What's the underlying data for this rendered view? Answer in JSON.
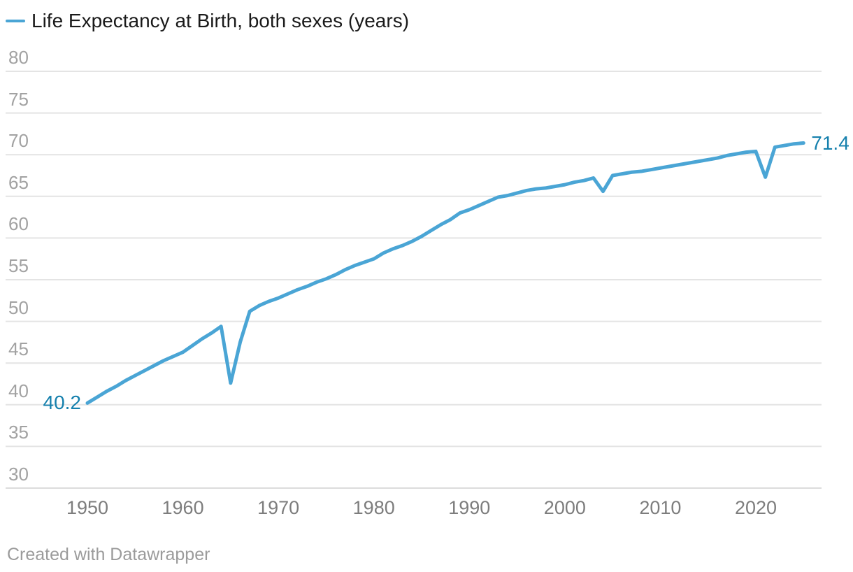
{
  "legend": {
    "label": "Life Expectancy at Birth, both sexes (years)"
  },
  "labels": {
    "start_value": "40.2",
    "end_value": "71.4"
  },
  "footer": {
    "text": "Created with Datawrapper"
  },
  "colors": {
    "line": "#4aa5d5",
    "value_label": "#1580ad",
    "legend_text": "#1a1a1a",
    "y_tick": "#a2a2a2",
    "x_tick": "#7d7d7d",
    "grid": "#e4e4e4",
    "grid_baseline": "#dcdcdc",
    "footer_text": "#9b9b9b",
    "background": "#ffffff"
  },
  "chart_data": {
    "type": "line",
    "title": "",
    "xlabel": "",
    "ylabel": "",
    "legend_position": "top-left",
    "grid": "horizontal",
    "ylim": [
      30,
      80
    ],
    "yticks": [
      80,
      75,
      70,
      65,
      60,
      55,
      50,
      45,
      40,
      35,
      30
    ],
    "xticks": [
      1950,
      1960,
      1970,
      1980,
      1990,
      2000,
      2010,
      2020
    ],
    "x_range": [
      1950,
      2025
    ],
    "series": [
      {
        "name": "Life Expectancy at Birth, both sexes (years)",
        "x": [
          1950,
          1951,
          1952,
          1953,
          1954,
          1955,
          1956,
          1957,
          1958,
          1959,
          1960,
          1961,
          1962,
          1963,
          1964,
          1965,
          1966,
          1967,
          1968,
          1969,
          1970,
          1971,
          1972,
          1973,
          1974,
          1975,
          1976,
          1977,
          1978,
          1979,
          1980,
          1981,
          1982,
          1983,
          1984,
          1985,
          1986,
          1987,
          1988,
          1989,
          1990,
          1991,
          1992,
          1993,
          1994,
          1995,
          1996,
          1997,
          1998,
          1999,
          2000,
          2001,
          2002,
          2003,
          2004,
          2005,
          2006,
          2007,
          2008,
          2009,
          2010,
          2011,
          2012,
          2013,
          2014,
          2015,
          2016,
          2017,
          2018,
          2019,
          2020,
          2021,
          2022,
          2023,
          2024,
          2025
        ],
        "values": [
          40.2,
          40.9,
          41.6,
          42.2,
          42.9,
          43.5,
          44.1,
          44.7,
          45.3,
          45.8,
          46.3,
          47.1,
          47.9,
          48.6,
          49.4,
          42.6,
          47.5,
          51.2,
          51.9,
          52.4,
          52.8,
          53.3,
          53.8,
          54.2,
          54.7,
          55.1,
          55.6,
          56.2,
          56.7,
          57.1,
          57.5,
          58.2,
          58.7,
          59.1,
          59.6,
          60.2,
          60.9,
          61.6,
          62.2,
          63.0,
          63.4,
          63.9,
          64.4,
          64.9,
          65.1,
          65.4,
          65.7,
          65.9,
          66.0,
          66.2,
          66.4,
          66.7,
          66.9,
          67.2,
          65.6,
          67.5,
          67.7,
          67.9,
          68.0,
          68.2,
          68.4,
          68.6,
          68.8,
          69.0,
          69.2,
          69.4,
          69.6,
          69.9,
          70.1,
          70.3,
          70.4,
          67.3,
          70.9,
          71.1,
          71.3,
          71.4
        ],
        "first_point_label": "40.2",
        "last_point_label": "71.4"
      }
    ],
    "annotations": [
      {
        "x": 1950,
        "y": 40.2,
        "text": "40.2",
        "position": "left"
      },
      {
        "x": 2025,
        "y": 71.4,
        "text": "71.4",
        "position": "right"
      }
    ]
  }
}
